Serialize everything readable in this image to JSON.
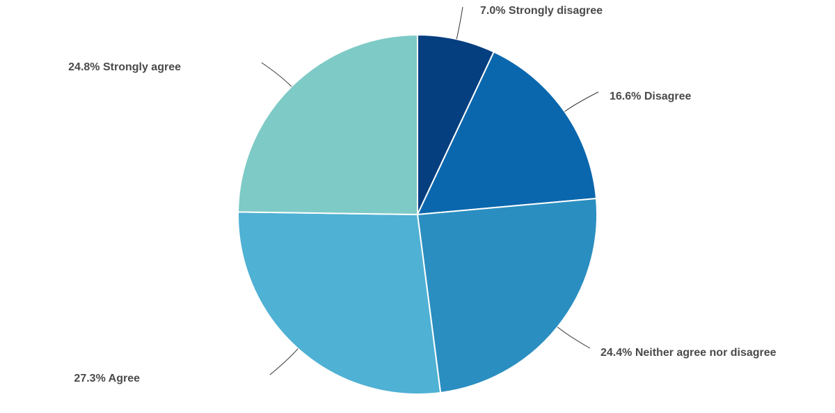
{
  "chart_data": {
    "type": "pie",
    "title": "",
    "slices": [
      {
        "label": "Strongly disagree",
        "value": 7.0,
        "display": "7.0% Strongly disagree",
        "color": "#063f7f"
      },
      {
        "label": "Disagree",
        "value": 16.6,
        "display": "16.6% Disagree",
        "color": "#0a67ad"
      },
      {
        "label": "Neither agree nor disagree",
        "value": 24.4,
        "display": "24.4% Neither agree nor disagree",
        "color": "#2b8ec0"
      },
      {
        "label": "Agree",
        "value": 27.3,
        "display": "27.3% Agree",
        "color": "#4fb1d4"
      },
      {
        "label": "Strongly agree",
        "value": 24.8,
        "display": "24.8% Strongly agree",
        "color": "#7ecac6"
      }
    ],
    "start_angle": "12 o'clock",
    "direction": "clockwise",
    "legend": "none",
    "labels": "outside with leader lines"
  }
}
